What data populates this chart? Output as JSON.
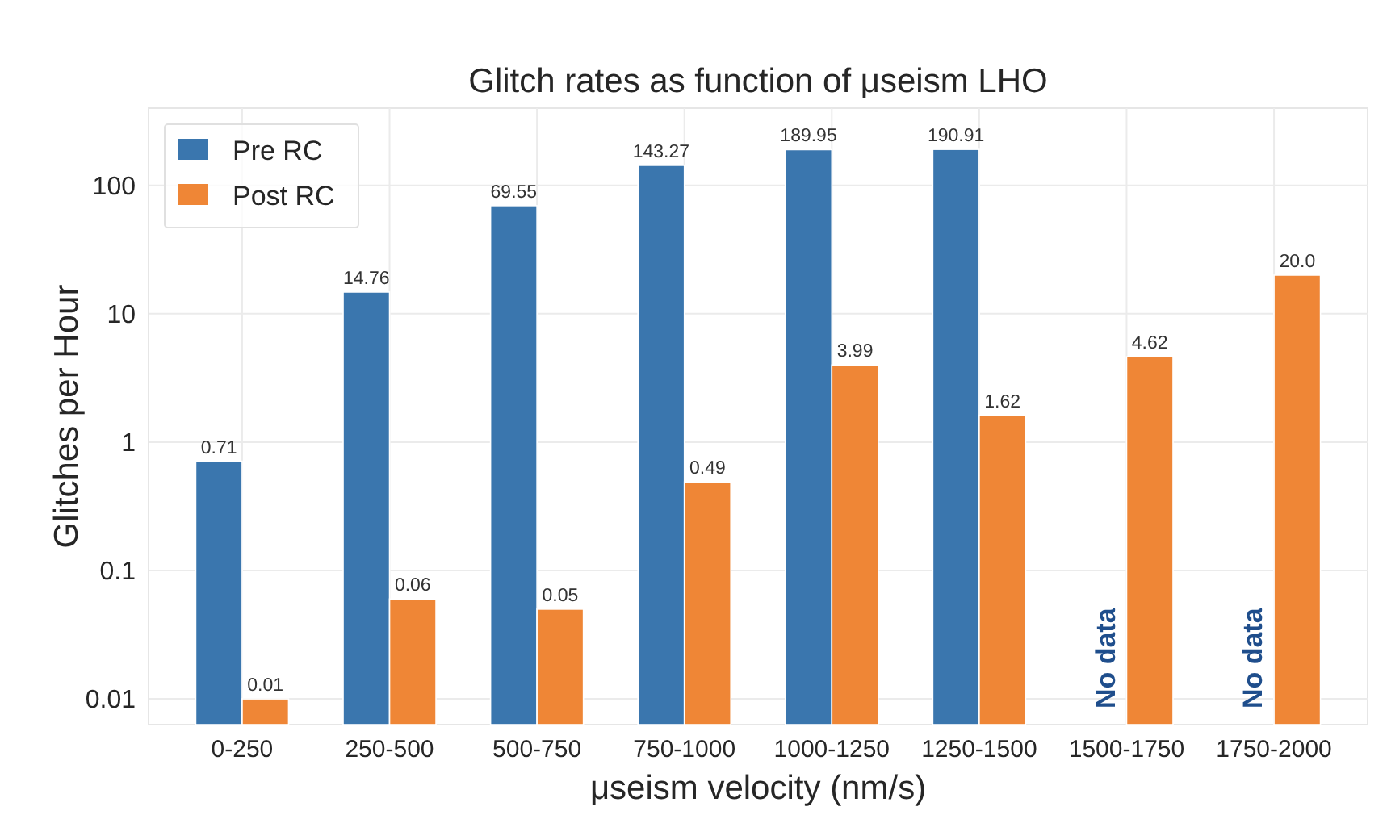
{
  "chart_data": {
    "type": "bar",
    "title": "Glitch rates as function of μseism LHO",
    "xlabel": "μseism velocity (nm/s)",
    "ylabel": "Glitches per Hour",
    "categories": [
      "0-250",
      "250-500",
      "500-750",
      "750-1000",
      "1000-1250",
      "1250-1500",
      "1500-1750",
      "1750-2000"
    ],
    "series": [
      {
        "name": "Pre RC",
        "color": "#3a76ae",
        "values": [
          0.71,
          14.76,
          69.55,
          143.27,
          189.95,
          190.91,
          null,
          null
        ],
        "value_labels": [
          "0.71",
          "14.76",
          "69.55",
          "143.27",
          "189.95",
          "190.91",
          null,
          null
        ]
      },
      {
        "name": "Post RC",
        "color": "#ef8636",
        "values": [
          0.01,
          0.06,
          0.05,
          0.49,
          3.99,
          1.62,
          4.62,
          20.0
        ],
        "value_labels": [
          "0.01",
          "0.06",
          "0.05",
          "0.49",
          "3.99",
          "1.62",
          "4.62",
          "20.0"
        ]
      }
    ],
    "annotations": [
      {
        "text": "No data",
        "x": "1500-1750",
        "y": 0.01
      },
      {
        "text": "No data",
        "x": "1750-2000",
        "y": 0.01
      }
    ],
    "log": true,
    "ylim": [
      0.0063,
      400
    ],
    "yticks": [
      {
        "value": 0.01,
        "label": "0.01"
      },
      {
        "value": 0.1,
        "label": "0.1"
      },
      1,
      10,
      100
    ],
    "grid": true,
    "legend": "top left"
  }
}
